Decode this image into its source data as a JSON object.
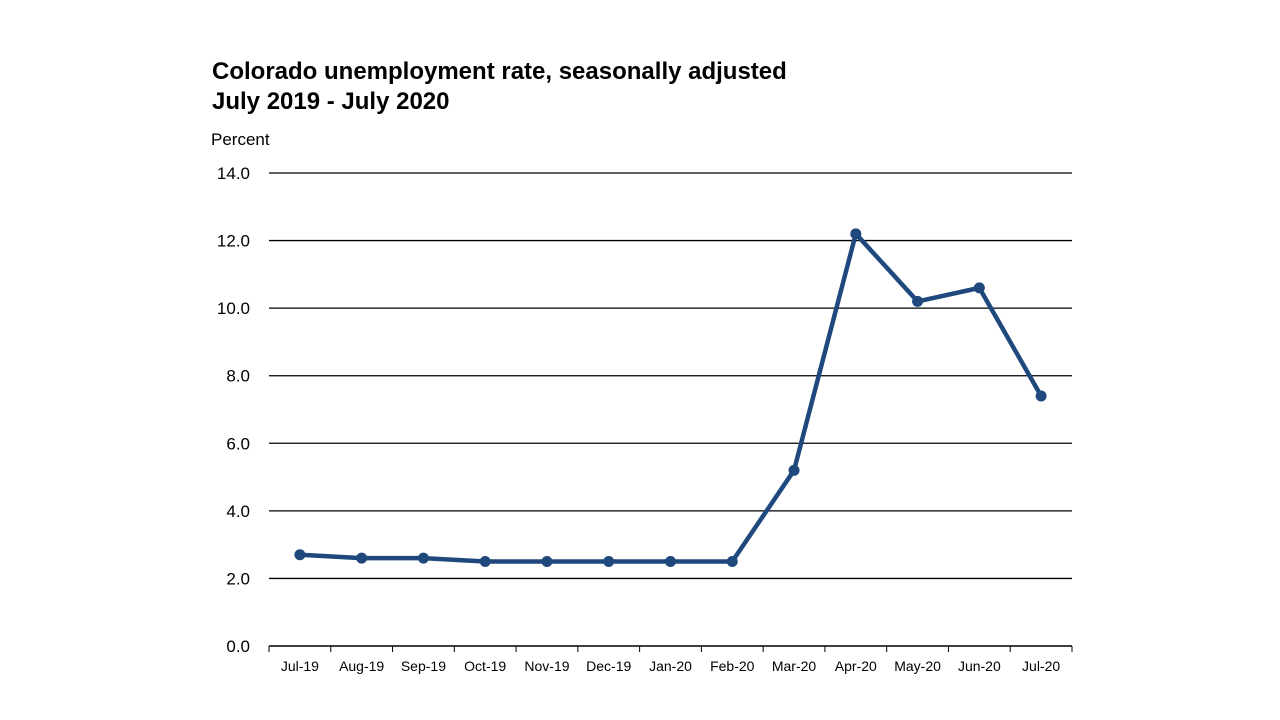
{
  "chart_data": {
    "type": "line",
    "title": "Colorado unemployment rate, seasonally adjusted",
    "subtitle": "July 2019 - July 2020",
    "ylabel": "Percent",
    "xlabel": "",
    "ylim": [
      0,
      14
    ],
    "yticks": [
      "0.0",
      "2.0",
      "4.0",
      "6.0",
      "8.0",
      "10.0",
      "12.0",
      "14.0"
    ],
    "grid": true,
    "categories": [
      "Jul-19",
      "Aug-19",
      "Sep-19",
      "Oct-19",
      "Nov-19",
      "Dec-19",
      "Jan-20",
      "Feb-20",
      "Mar-20",
      "Apr-20",
      "May-20",
      "Jun-20",
      "Jul-20"
    ],
    "series": [
      {
        "values": [
          2.7,
          2.6,
          2.6,
          2.5,
          2.5,
          2.5,
          2.5,
          2.5,
          5.2,
          12.2,
          10.2,
          10.6,
          7.4
        ],
        "color": "#1f497d"
      }
    ]
  }
}
